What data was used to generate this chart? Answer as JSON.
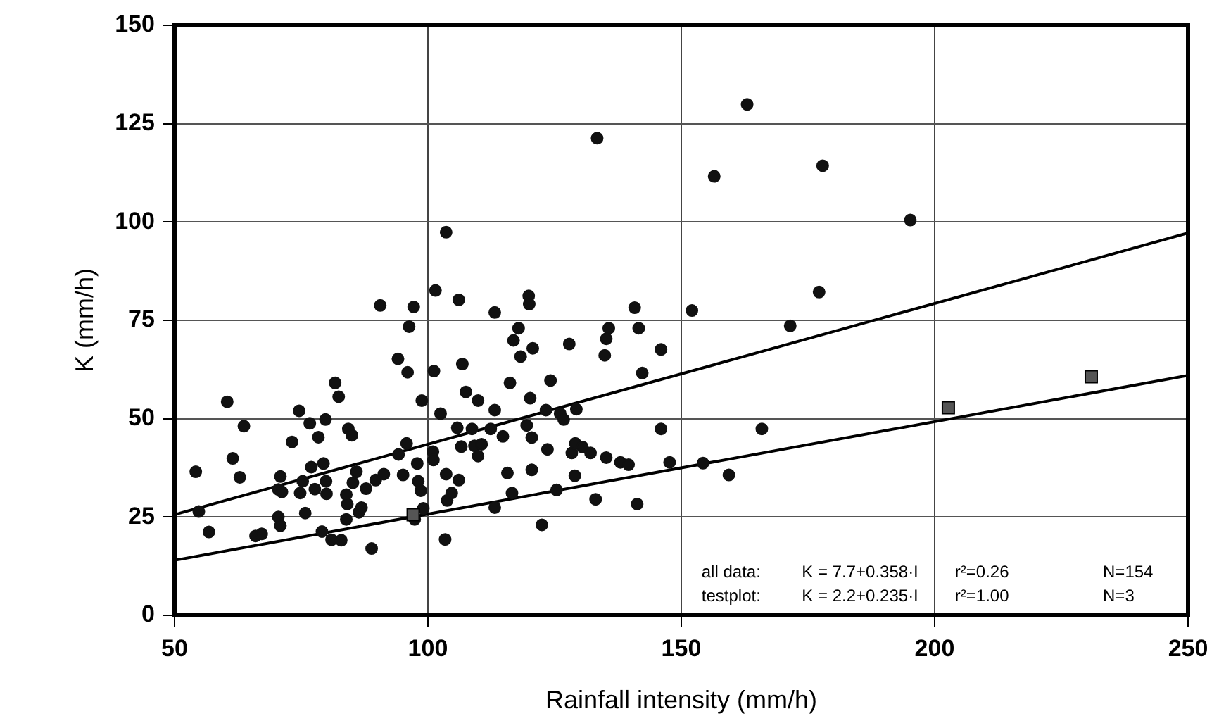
{
  "chart_data": {
    "type": "scatter",
    "xlabel": "Rainfall intensity (mm/h)",
    "ylabel": "K (mm/h)",
    "xlim": [
      50,
      250
    ],
    "xticks": [
      50,
      100,
      150,
      200,
      250
    ],
    "ylim": [
      0,
      150
    ],
    "yticks": [
      0,
      25,
      50,
      75,
      100,
      125,
      150
    ],
    "grid": true,
    "annotations": [
      "all data:",
      "K = 7.7+0.358·I",
      "r²=0.26",
      "N=154",
      "testplot:",
      "K = 2.2+0.235·I",
      "r²=1.00",
      "N=3"
    ],
    "series": [
      {
        "color": "#111111",
        "marker": "circle",
        "x": [
          54.2,
          54.8,
          56.8,
          60.4,
          61.5,
          62.9,
          63.7,
          66.0,
          67.2,
          70.5,
          70.9,
          70.9,
          70.5,
          71.2,
          73.2,
          74.6,
          74.8,
          75.3,
          75.8,
          76.7,
          77.0,
          77.7,
          78.4,
          79.1,
          79.4,
          79.8,
          79.9,
          80.0,
          81.0,
          81.7,
          82.4,
          82.9,
          83.9,
          84.3,
          85.0,
          84.1,
          83.9,
          85.2,
          85.9,
          86.4,
          86.9,
          87.8,
          88.9,
          89.7,
          90.6,
          91.3,
          94.1,
          94.2,
          95.1,
          95.8,
          96.0,
          96.3,
          97.2,
          97.4,
          97.9,
          98.1,
          98.6,
          98.8,
          99.1,
          101.0,
          101.1,
          101.2,
          101.5,
          102.5,
          103.4,
          103.6,
          103.8,
          104.7,
          105.8,
          106.1,
          106.1,
          106.8,
          106.6,
          107.5,
          108.7,
          109.2,
          109.9,
          110.6,
          109.9,
          112.4,
          113.2,
          113.2,
          113.2,
          114.8,
          115.7,
          116.2,
          116.9,
          117.9,
          118.3,
          119.9,
          120.0,
          120.7,
          124.2,
          120.2,
          119.5,
          120.5,
          123.3,
          126.1,
          126.8,
          129.3,
          123.6,
          120.5,
          128.4,
          129.1,
          130.5,
          132.1,
          135.2,
          138.0,
          139.6,
          129.0,
          116.6,
          125.4,
          122.5,
          133.1,
          141.3,
          146.0,
          147.7,
          154.3,
          159.4,
          165.9,
          140.8,
          141.6,
          135.7,
          135.2,
          134.9,
          127.9,
          146.0,
          142.3,
          152.1,
          171.5,
          177.2,
          133.4,
          163.0,
          156.5,
          177.9,
          195.2,
          103.6
        ],
        "values": [
          36.5,
          26.4,
          21.2,
          54.3,
          39.9,
          35.1,
          48.1,
          20.2,
          20.7,
          25.0,
          22.8,
          35.3,
          32.0,
          31.4,
          44.1,
          52.0,
          31.1,
          34.1,
          26.0,
          48.8,
          37.7,
          32.1,
          45.3,
          21.3,
          38.6,
          49.8,
          34.1,
          30.9,
          19.2,
          59.1,
          55.6,
          19.1,
          30.7,
          47.4,
          45.8,
          28.3,
          24.4,
          33.7,
          36.5,
          26.2,
          27.4,
          32.2,
          17.0,
          34.4,
          78.8,
          35.9,
          65.2,
          40.9,
          35.7,
          43.7,
          61.8,
          73.4,
          78.4,
          24.4,
          38.6,
          34.1,
          31.7,
          54.6,
          27.2,
          41.6,
          39.5,
          62.1,
          82.6,
          51.3,
          19.3,
          35.9,
          29.2,
          31.1,
          47.7,
          34.4,
          80.2,
          63.9,
          42.9,
          56.8,
          47.4,
          43.1,
          40.5,
          43.5,
          54.6,
          47.4,
          77.0,
          52.2,
          27.4,
          45.5,
          36.2,
          59.1,
          69.9,
          73.0,
          65.8,
          81.2,
          79.1,
          67.9,
          59.7,
          55.2,
          48.3,
          45.2,
          52.2,
          51.3,
          49.8,
          52.4,
          42.2,
          37.0,
          41.3,
          43.7,
          42.8,
          41.3,
          40.1,
          38.9,
          38.3,
          35.5,
          31.1,
          31.9,
          23.0,
          29.5,
          28.3,
          47.4,
          38.9,
          38.7,
          35.7,
          47.4,
          78.2,
          73.0,
          73.0,
          70.3,
          66.1,
          69.0,
          67.6,
          61.6,
          77.5,
          73.6,
          82.2,
          121.3,
          129.9,
          111.6,
          114.3,
          100.5,
          97.4
        ]
      },
      {
        "color": "#555555",
        "marker": "square",
        "x": [
          97.1,
          202.7,
          230.9
        ],
        "values": [
          25.6,
          52.8,
          60.7
        ]
      },
      {
        "type": "line",
        "color": "#000000",
        "marker": "none",
        "x": [
          50,
          250
        ],
        "values": [
          25.6,
          97.2
        ]
      },
      {
        "type": "line",
        "color": "#000000",
        "marker": "none",
        "x": [
          50,
          250
        ],
        "values": [
          14.0,
          61.0
        ]
      }
    ]
  }
}
